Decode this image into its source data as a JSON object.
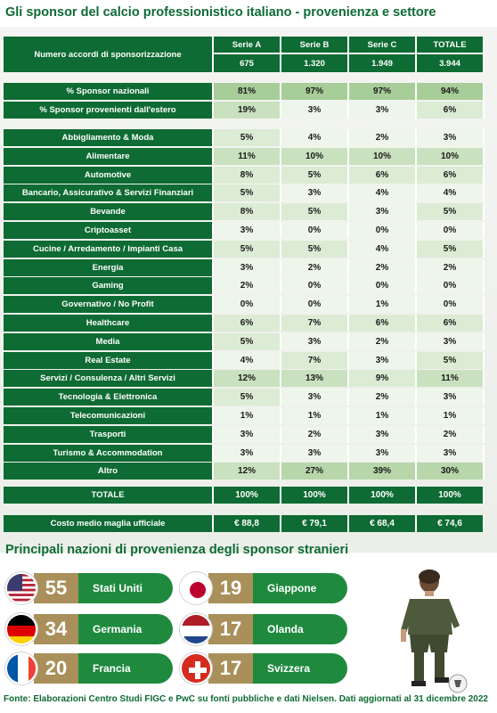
{
  "title": "Gli sponsor del calcio professionistico italiano - provenienza e settore",
  "header": {
    "label": "Numero accordi di sponsorizzazione",
    "columns": [
      "Serie A",
      "Serie B",
      "Serie C",
      "TOTALE"
    ],
    "counts": [
      "675",
      "1.320",
      "1.949",
      "3.944"
    ]
  },
  "origin_rows": [
    {
      "label": "% Sponsor nazionali",
      "values": [
        "81%",
        "97%",
        "97%",
        "94%"
      ]
    },
    {
      "label": "% Sponsor provenienti dall'estero",
      "values": [
        "19%",
        "3%",
        "3%",
        "6%"
      ]
    }
  ],
  "sector_rows": [
    {
      "label": "Abbigliamento & Moda",
      "values": [
        "5%",
        "4%",
        "2%",
        "3%"
      ]
    },
    {
      "label": "Alimentare",
      "values": [
        "11%",
        "10%",
        "10%",
        "10%"
      ]
    },
    {
      "label": "Automotive",
      "values": [
        "8%",
        "5%",
        "6%",
        "6%"
      ]
    },
    {
      "label": "Bancario, Assicurativo & Servizi Finanziari",
      "values": [
        "5%",
        "3%",
        "4%",
        "4%"
      ]
    },
    {
      "label": "Bevande",
      "values": [
        "8%",
        "5%",
        "3%",
        "5%"
      ]
    },
    {
      "label": "Criptoasset",
      "values": [
        "3%",
        "0%",
        "0%",
        "0%"
      ]
    },
    {
      "label": "Cucine / Arredamento / Impianti Casa",
      "values": [
        "5%",
        "5%",
        "4%",
        "5%"
      ]
    },
    {
      "label": "Energia",
      "values": [
        "3%",
        "2%",
        "2%",
        "2%"
      ]
    },
    {
      "label": "Gaming",
      "values": [
        "2%",
        "0%",
        "0%",
        "0%"
      ]
    },
    {
      "label": "Governativo / No Profit",
      "values": [
        "0%",
        "0%",
        "1%",
        "0%"
      ]
    },
    {
      "label": "Healthcare",
      "values": [
        "6%",
        "7%",
        "6%",
        "6%"
      ]
    },
    {
      "label": "Media",
      "values": [
        "5%",
        "3%",
        "2%",
        "3%"
      ]
    },
    {
      "label": "Real Estate",
      "values": [
        "4%",
        "7%",
        "3%",
        "5%"
      ]
    },
    {
      "label": "Servizi / Consulenza / Altri Servizi",
      "values": [
        "12%",
        "13%",
        "9%",
        "11%"
      ]
    },
    {
      "label": "Tecnologia & Elettronica",
      "values": [
        "5%",
        "3%",
        "2%",
        "3%"
      ]
    },
    {
      "label": "Telecomunicazioni",
      "values": [
        "1%",
        "1%",
        "1%",
        "1%"
      ]
    },
    {
      "label": "Trasporti",
      "values": [
        "3%",
        "2%",
        "3%",
        "2%"
      ]
    },
    {
      "label": "Turismo & Accommodation",
      "values": [
        "3%",
        "3%",
        "3%",
        "3%"
      ]
    },
    {
      "label": "Altro",
      "values": [
        "12%",
        "27%",
        "39%",
        "30%"
      ]
    }
  ],
  "total_row": {
    "label": "TOTALE",
    "values": [
      "100%",
      "100%",
      "100%",
      "100%"
    ]
  },
  "cost_row": {
    "label": "Costo medio maglia ufficiale",
    "values": [
      "€ 88,8",
      "€ 79,1",
      "€ 68,4",
      "€ 74,6"
    ]
  },
  "countries_title": "Principali nazioni di provenienza degli sponsor stranieri",
  "countries": [
    {
      "number": "55",
      "name": "Stati Uniti",
      "flag_icon": "usa-flag-icon"
    },
    {
      "number": "19",
      "name": "Giappone",
      "flag_icon": "japan-flag-icon"
    },
    {
      "number": "34",
      "name": "Germania",
      "flag_icon": "germany-flag-icon"
    },
    {
      "number": "17",
      "name": "Olanda",
      "flag_icon": "netherlands-flag-icon"
    },
    {
      "number": "20",
      "name": "Francia",
      "flag_icon": "france-flag-icon"
    },
    {
      "number": "17",
      "name": "Svizzera",
      "flag_icon": "switzerland-flag-icon"
    }
  ],
  "footer": "Fonte: Elaborazioni Centro Studi FIGC e PwC su fonti pubbliche e dati Nielsen. Dati aggiornati al 31 dicembre 2022",
  "colors": {
    "brand_green": "#0e6b33",
    "gold": "#a9905a",
    "button_green": "#1f8a3e"
  }
}
